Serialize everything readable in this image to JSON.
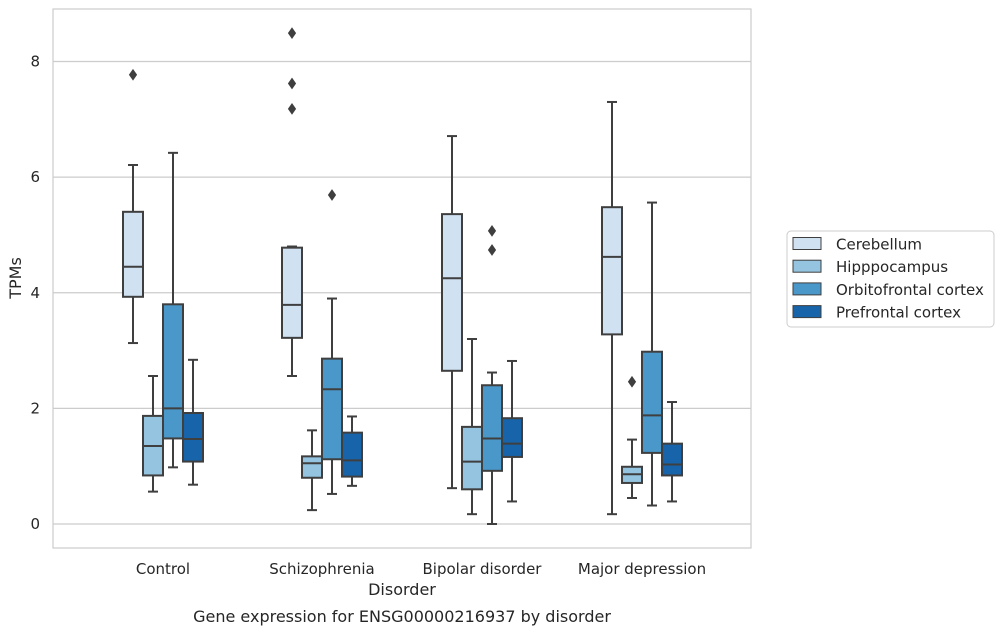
{
  "chart_data": {
    "type": "box",
    "xlabel": "Disorder",
    "ylabel": "TPMs",
    "caption": "Gene expression for ENSG00000216937 by disorder",
    "categories": [
      "Control",
      "Schizophrenia",
      "Bipolar disorder",
      "Major depression"
    ],
    "ylim": [
      -0.4,
      8.9
    ],
    "yticks": [
      0,
      2,
      4,
      6,
      8
    ],
    "grid": "horizontal",
    "legend_position": "right",
    "series": [
      {
        "name": "Cerebellum",
        "color": "#d0e1f2",
        "boxes": [
          {
            "whisker_low": 3.13,
            "q1": 3.93,
            "median": 4.45,
            "q3": 5.4,
            "whisker_high": 6.21,
            "outliers": [
              7.77
            ]
          },
          {
            "whisker_low": 2.56,
            "q1": 3.22,
            "median": 3.79,
            "q3": 4.78,
            "whisker_high": 4.8,
            "outliers": [
              8.49,
              7.62,
              7.18
            ]
          },
          {
            "whisker_low": 0.62,
            "q1": 2.65,
            "median": 4.25,
            "q3": 5.36,
            "whisker_high": 6.71,
            "outliers": []
          },
          {
            "whisker_low": 0.17,
            "q1": 3.28,
            "median": 4.62,
            "q3": 5.48,
            "whisker_high": 7.3,
            "outliers": []
          }
        ]
      },
      {
        "name": "Hipppocampus",
        "color": "#94c4df",
        "boxes": [
          {
            "whisker_low": 0.56,
            "q1": 0.84,
            "median": 1.35,
            "q3": 1.87,
            "whisker_high": 2.56,
            "outliers": []
          },
          {
            "whisker_low": 0.24,
            "q1": 0.8,
            "median": 1.05,
            "q3": 1.17,
            "whisker_high": 1.62,
            "outliers": []
          },
          {
            "whisker_low": 0.17,
            "q1": 0.6,
            "median": 1.08,
            "q3": 1.68,
            "whisker_high": 3.2,
            "outliers": []
          },
          {
            "whisker_low": 0.45,
            "q1": 0.71,
            "median": 0.86,
            "q3": 0.99,
            "whisker_high": 1.46,
            "outliers": [
              2.46
            ]
          }
        ]
      },
      {
        "name": "Orbitofrontal cortex",
        "color": "#4a98c9",
        "boxes": [
          {
            "whisker_low": 0.98,
            "q1": 1.48,
            "median": 2.0,
            "q3": 3.8,
            "whisker_high": 6.42,
            "outliers": []
          },
          {
            "whisker_low": 0.52,
            "q1": 1.12,
            "median": 2.33,
            "q3": 2.86,
            "whisker_high": 3.9,
            "outliers": [
              5.69
            ]
          },
          {
            "whisker_low": 0.0,
            "q1": 0.92,
            "median": 1.48,
            "q3": 2.4,
            "whisker_high": 2.62,
            "outliers": [
              5.07,
              4.74
            ]
          },
          {
            "whisker_low": 0.32,
            "q1": 1.23,
            "median": 1.88,
            "q3": 2.98,
            "whisker_high": 5.56,
            "outliers": []
          }
        ]
      },
      {
        "name": "Prefrontal cortex",
        "color": "#1764ab",
        "boxes": [
          {
            "whisker_low": 0.68,
            "q1": 1.08,
            "median": 1.47,
            "q3": 1.92,
            "whisker_high": 2.84,
            "outliers": []
          },
          {
            "whisker_low": 0.66,
            "q1": 0.82,
            "median": 1.1,
            "q3": 1.58,
            "whisker_high": 1.86,
            "outliers": []
          },
          {
            "whisker_low": 0.39,
            "q1": 1.16,
            "median": 1.39,
            "q3": 1.83,
            "whisker_high": 2.82,
            "outliers": []
          },
          {
            "whisker_low": 0.39,
            "q1": 0.84,
            "median": 1.03,
            "q3": 1.39,
            "whisker_high": 2.11,
            "outliers": []
          }
        ]
      }
    ]
  }
}
